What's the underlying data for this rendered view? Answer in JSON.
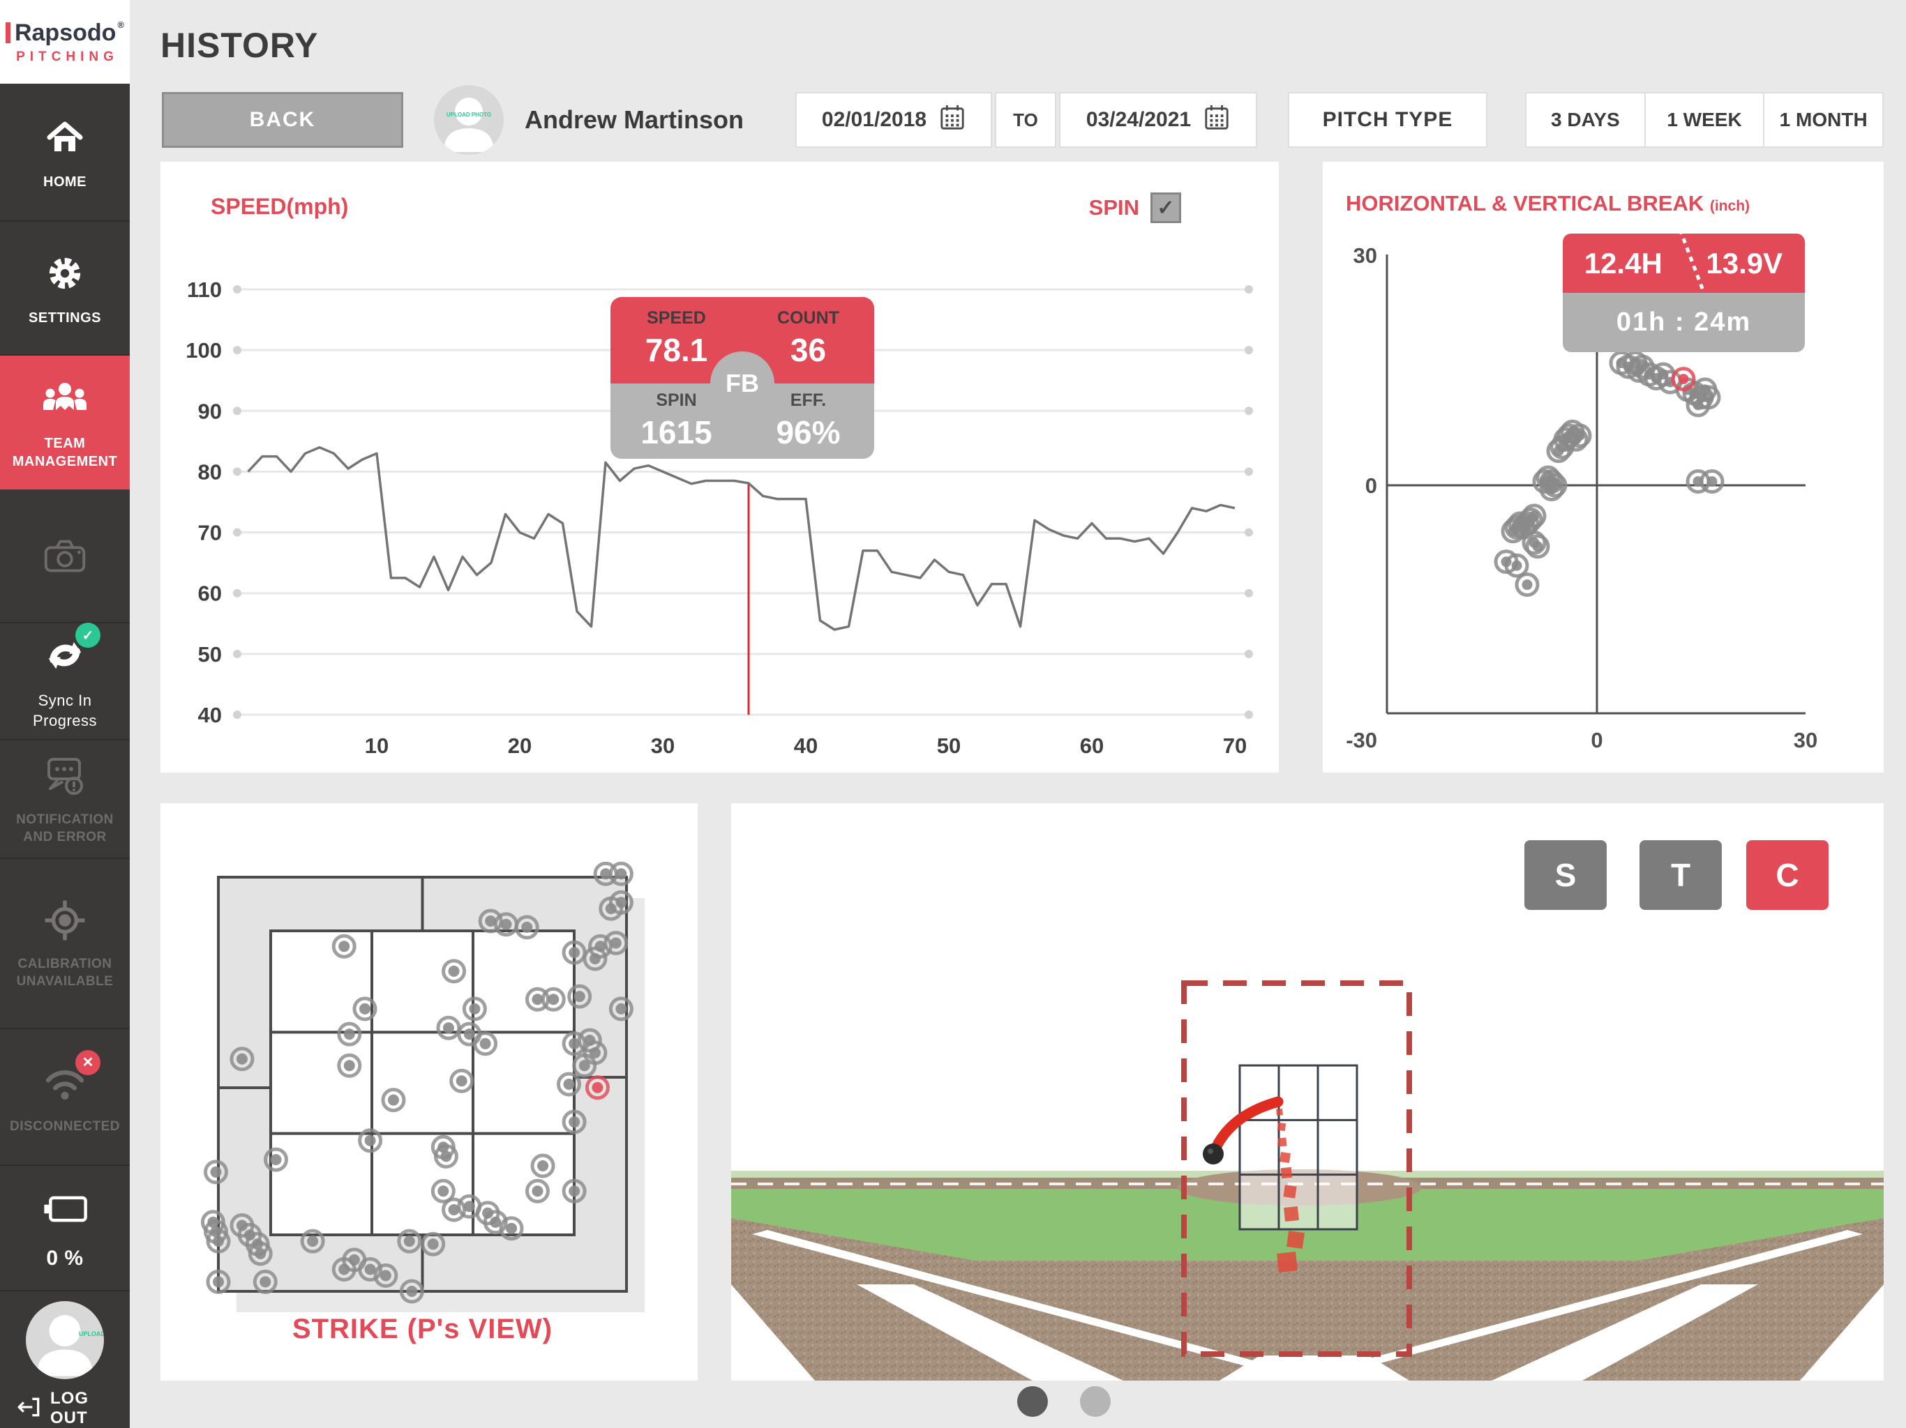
{
  "colors": {
    "accent": "#e24a58",
    "scatter": "#8a8a8a",
    "line": "#747474",
    "marker": "#e0252d"
  },
  "icons": {
    "check": "✓",
    "close": "✕"
  },
  "sidebar": {
    "brand": "Rapsodo",
    "brand_reg": "®",
    "brand_sub": "PITCHING",
    "items": [
      {
        "label": "HOME"
      },
      {
        "label": "SETTINGS"
      },
      {
        "label": "TEAM MANAGEMENT"
      },
      {
        "label": ""
      },
      {
        "label": "Sync In Progress"
      },
      {
        "label": "NOTIFICATION AND ERROR"
      },
      {
        "label": "CALIBRATION UNAVAILABLE"
      },
      {
        "label": "DISCONNECTED"
      },
      {
        "label": "0 %"
      }
    ],
    "avatar_text": "UPLOAD PHOTO",
    "logout_label": "LOG OUT"
  },
  "header": {
    "title": "HISTORY",
    "back_label": "BACK",
    "player_name": "Andrew Martinson",
    "avatar_text": "UPLOAD PHOTO",
    "date_from": "02/01/2018",
    "to_label": "TO",
    "date_to": "03/24/2021",
    "pitch_type_label": "PITCH TYPE",
    "range_buttons": [
      "3 DAYS",
      "1 WEEK",
      "1 MONTH"
    ]
  },
  "chart_data": [
    {
      "id": "speed",
      "type": "line",
      "title": "SPEED(mph)",
      "spin_label": "SPIN",
      "spin_checked": true,
      "y_ticks": [
        110,
        100,
        90,
        80,
        70,
        60,
        50,
        40
      ],
      "x_ticks": [
        10,
        20,
        30,
        40,
        50,
        60,
        70
      ],
      "ylim": [
        40,
        110
      ],
      "xlim": [
        0,
        71
      ],
      "values": [
        80,
        82.5,
        82.5,
        80,
        83,
        84,
        83,
        80.5,
        82,
        83,
        62.5,
        62.5,
        61,
        66,
        60.5,
        66,
        63,
        65,
        73,
        70,
        69,
        73,
        71.5,
        57,
        54.5,
        81.5,
        78.5,
        80.5,
        81,
        80,
        79,
        78,
        78.5,
        78.5,
        78.5,
        78.1,
        76,
        75.5,
        75.5,
        75.5,
        55.5,
        54,
        54.5,
        67,
        67,
        63.5,
        63,
        62.5,
        65.5,
        63.5,
        63,
        58,
        61.5,
        61.5,
        54.5,
        72,
        70.5,
        69.5,
        69,
        71.5,
        69,
        69,
        68.5,
        69,
        66.5,
        70,
        74,
        73.5,
        74.5,
        74
      ],
      "selected_index": 36,
      "tooltip": {
        "speed_label": "SPEED",
        "speed": "78.1",
        "count_label": "COUNT",
        "count": "36",
        "spin_label": "SPIN",
        "spin": "1615",
        "eff_label": "EFF.",
        "eff": "96%",
        "tag": "FB"
      }
    },
    {
      "id": "break",
      "type": "scatter",
      "title": "HORIZONTAL & VERTICAL BREAK",
      "unit": "(inch)",
      "xlim": [
        -30,
        30
      ],
      "ylim": [
        -30,
        30
      ],
      "x_ticks": [
        -30,
        0,
        30
      ],
      "y_ticks": [
        30,
        0,
        -30
      ],
      "points": [
        [
          3.5,
          16
        ],
        [
          4.5,
          15.5
        ],
        [
          5.5,
          16
        ],
        [
          6,
          15
        ],
        [
          6.5,
          15.5
        ],
        [
          7.5,
          14.5
        ],
        [
          8.5,
          14
        ],
        [
          9.5,
          14.5
        ],
        [
          10.5,
          13.5
        ],
        [
          13,
          12.5
        ],
        [
          14,
          12
        ],
        [
          15,
          11.5
        ],
        [
          14.5,
          10.5
        ],
        [
          15.5,
          12.5
        ],
        [
          16,
          11.5
        ],
        [
          14.5,
          0.5
        ],
        [
          16.5,
          0.5
        ],
        [
          -4,
          6.5
        ],
        [
          -3.5,
          7
        ],
        [
          -3,
          6
        ],
        [
          -4.5,
          6
        ],
        [
          -2.5,
          6.5
        ],
        [
          -5,
          5
        ],
        [
          -5.5,
          4.5
        ],
        [
          -7,
          1
        ],
        [
          -6.5,
          0.5
        ],
        [
          -7.5,
          0.5
        ],
        [
          -6,
          0
        ],
        [
          -6.5,
          -0.5
        ],
        [
          -9,
          -4
        ],
        [
          -9.5,
          -4.5
        ],
        [
          -10,
          -5
        ],
        [
          -10.5,
          -5.5
        ],
        [
          -11,
          -5
        ],
        [
          -11.5,
          -5.5
        ],
        [
          -12,
          -6
        ],
        [
          -9,
          -7.5
        ],
        [
          -8.5,
          -8
        ],
        [
          -13,
          -10
        ],
        [
          -11.5,
          -10.5
        ],
        [
          -10,
          -13
        ]
      ],
      "highlight": [
        12.4,
        13.9
      ],
      "tooltip": {
        "h": "12.4H",
        "v": "13.9V",
        "time": "01h : 24m"
      }
    },
    {
      "id": "strike",
      "type": "scatter",
      "title": "STRIKE (P's VIEW)",
      "points": [
        [
          0.949,
          -0.008
        ],
        [
          0.987,
          -0.008
        ],
        [
          0.962,
          0.076
        ],
        [
          0.987,
          0.061
        ],
        [
          0.936,
          0.167
        ],
        [
          0.974,
          0.159
        ],
        [
          0.872,
          0.182
        ],
        [
          0.923,
          0.197
        ],
        [
          0.667,
          0.106
        ],
        [
          0.705,
          0.114
        ],
        [
          0.756,
          0.121
        ],
        [
          0.308,
          0.167
        ],
        [
          0.577,
          0.227
        ],
        [
          0.628,
          0.318
        ],
        [
          0.782,
          0.295
        ],
        [
          0.821,
          0.295
        ],
        [
          0.885,
          0.288
        ],
        [
          0.987,
          0.318
        ],
        [
          0.359,
          0.318
        ],
        [
          0.321,
          0.379
        ],
        [
          0.321,
          0.455
        ],
        [
          0.564,
          0.364
        ],
        [
          0.615,
          0.379
        ],
        [
          0.654,
          0.402
        ],
        [
          0.058,
          0.439
        ],
        [
          0.872,
          0.402
        ],
        [
          0.91,
          0.394
        ],
        [
          0.923,
          0.424
        ],
        [
          0.897,
          0.455
        ],
        [
          0.859,
          0.5
        ],
        [
          0.872,
          0.591
        ],
        [
          0.596,
          0.492
        ],
        [
          0.429,
          0.538
        ],
        [
          0.372,
          0.636
        ],
        [
          0.141,
          0.682
        ],
        [
          -0.006,
          0.712
        ],
        [
          0.551,
          0.652
        ],
        [
          0.558,
          0.674
        ],
        [
          0.551,
          0.758
        ],
        [
          0.577,
          0.803
        ],
        [
          0.615,
          0.795
        ],
        [
          0.795,
          0.697
        ],
        [
          0.782,
          0.758
        ],
        [
          0.872,
          0.758
        ],
        [
          -0.013,
          0.833
        ],
        [
          -0.006,
          0.856
        ],
        [
          0.0,
          0.879
        ],
        [
          0.058,
          0.841
        ],
        [
          0.077,
          0.864
        ],
        [
          0.096,
          0.886
        ],
        [
          0.103,
          0.909
        ],
        [
          0.231,
          0.879
        ],
        [
          0.0,
          0.977
        ],
        [
          0.115,
          0.977
        ],
        [
          0.308,
          0.947
        ],
        [
          0.333,
          0.924
        ],
        [
          0.372,
          0.947
        ],
        [
          0.41,
          0.962
        ],
        [
          0.468,
          0.879
        ],
        [
          0.526,
          0.886
        ],
        [
          0.66,
          0.811
        ],
        [
          0.679,
          0.833
        ],
        [
          0.718,
          0.848
        ],
        [
          0.474,
          1.0
        ]
      ],
      "highlight": [
        0.929,
        0.508
      ]
    }
  ],
  "view3d": {
    "buttons": [
      "S",
      "T",
      "C"
    ],
    "active_index": 2,
    "ball": [
      691,
      503
    ],
    "curve": [
      [
        691,
        503
      ],
      [
        712,
        448
      ],
      [
        784,
        428
      ]
    ],
    "trail": [
      [
        786,
        443,
        9
      ],
      [
        789,
        464,
        11
      ],
      [
        790,
        486,
        12
      ],
      [
        794,
        508,
        14
      ],
      [
        796,
        530,
        15
      ],
      [
        801,
        557,
        17
      ],
      [
        803,
        589,
        20
      ],
      [
        809,
        626,
        23
      ],
      [
        797,
        658,
        27
      ]
    ]
  },
  "pagination": {
    "dots": 2,
    "active": 0
  }
}
